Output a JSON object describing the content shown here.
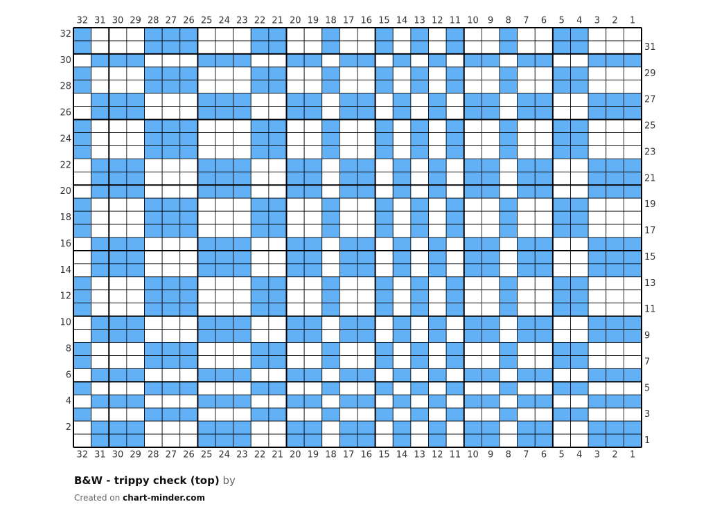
{
  "title": "B&W - trippy check (top)",
  "byline": "by",
  "created_prefix": "Created on",
  "site": "chart-minder.com",
  "fill_color": "#62b0f5",
  "empty_color": "#ffffff",
  "column_numbers": [
    32,
    31,
    30,
    29,
    28,
    27,
    26,
    25,
    24,
    23,
    22,
    21,
    20,
    19,
    18,
    17,
    16,
    15,
    14,
    13,
    12,
    11,
    10,
    9,
    8,
    7,
    6,
    5,
    4,
    3,
    2,
    1
  ],
  "row_numbers": [
    32,
    31,
    30,
    29,
    28,
    27,
    26,
    25,
    24,
    23,
    22,
    21,
    20,
    19,
    18,
    17,
    16,
    15,
    14,
    13,
    12,
    11,
    10,
    9,
    8,
    7,
    6,
    5,
    4,
    3,
    2,
    1
  ],
  "grid": [
    [
      1,
      0,
      0,
      0,
      1,
      1,
      1,
      0,
      0,
      0,
      1,
      1,
      0,
      0,
      1,
      0,
      0,
      1,
      0,
      1,
      0,
      1,
      0,
      0,
      1,
      0,
      0,
      1,
      1,
      0,
      0,
      0
    ],
    [
      1,
      0,
      0,
      0,
      1,
      1,
      1,
      0,
      0,
      0,
      1,
      1,
      0,
      0,
      1,
      0,
      0,
      1,
      0,
      1,
      0,
      1,
      0,
      0,
      1,
      0,
      0,
      1,
      1,
      0,
      0,
      0
    ],
    [
      0,
      1,
      1,
      1,
      0,
      0,
      0,
      1,
      1,
      1,
      0,
      0,
      1,
      1,
      0,
      1,
      1,
      0,
      1,
      0,
      1,
      0,
      1,
      1,
      0,
      1,
      1,
      0,
      0,
      1,
      1,
      1
    ],
    [
      1,
      0,
      0,
      0,
      1,
      1,
      1,
      0,
      0,
      0,
      1,
      1,
      0,
      0,
      1,
      0,
      0,
      1,
      0,
      1,
      0,
      1,
      0,
      0,
      1,
      0,
      0,
      1,
      1,
      0,
      0,
      0
    ],
    [
      1,
      0,
      0,
      0,
      1,
      1,
      1,
      0,
      0,
      0,
      1,
      1,
      0,
      0,
      1,
      0,
      0,
      1,
      0,
      1,
      0,
      1,
      0,
      0,
      1,
      0,
      0,
      1,
      1,
      0,
      0,
      0
    ],
    [
      0,
      1,
      1,
      1,
      0,
      0,
      0,
      1,
      1,
      1,
      0,
      0,
      1,
      1,
      0,
      1,
      1,
      0,
      1,
      0,
      1,
      0,
      1,
      1,
      0,
      1,
      1,
      0,
      0,
      1,
      1,
      1
    ],
    [
      0,
      1,
      1,
      1,
      0,
      0,
      0,
      1,
      1,
      1,
      0,
      0,
      1,
      1,
      0,
      1,
      1,
      0,
      1,
      0,
      1,
      0,
      1,
      1,
      0,
      1,
      1,
      0,
      0,
      1,
      1,
      1
    ],
    [
      1,
      0,
      0,
      0,
      1,
      1,
      1,
      0,
      0,
      0,
      1,
      1,
      0,
      0,
      1,
      0,
      0,
      1,
      0,
      1,
      0,
      1,
      0,
      0,
      1,
      0,
      0,
      1,
      1,
      0,
      0,
      0
    ],
    [
      1,
      0,
      0,
      0,
      1,
      1,
      1,
      0,
      0,
      0,
      1,
      1,
      0,
      0,
      1,
      0,
      0,
      1,
      0,
      1,
      0,
      1,
      0,
      0,
      1,
      0,
      0,
      1,
      1,
      0,
      0,
      0
    ],
    [
      1,
      0,
      0,
      0,
      1,
      1,
      1,
      0,
      0,
      0,
      1,
      1,
      0,
      0,
      1,
      0,
      0,
      1,
      0,
      1,
      0,
      1,
      0,
      0,
      1,
      0,
      0,
      1,
      1,
      0,
      0,
      0
    ],
    [
      0,
      1,
      1,
      1,
      0,
      0,
      0,
      1,
      1,
      1,
      0,
      0,
      1,
      1,
      0,
      1,
      1,
      0,
      1,
      0,
      1,
      0,
      1,
      1,
      0,
      1,
      1,
      0,
      0,
      1,
      1,
      1
    ],
    [
      0,
      1,
      1,
      1,
      0,
      0,
      0,
      1,
      1,
      1,
      0,
      0,
      1,
      1,
      0,
      1,
      1,
      0,
      1,
      0,
      1,
      0,
      1,
      1,
      0,
      1,
      1,
      0,
      0,
      1,
      1,
      1
    ],
    [
      0,
      1,
      1,
      1,
      0,
      0,
      0,
      1,
      1,
      1,
      0,
      0,
      1,
      1,
      0,
      1,
      1,
      0,
      1,
      0,
      1,
      0,
      1,
      1,
      0,
      1,
      1,
      0,
      0,
      1,
      1,
      1
    ],
    [
      1,
      0,
      0,
      0,
      1,
      1,
      1,
      0,
      0,
      0,
      1,
      1,
      0,
      0,
      1,
      0,
      0,
      1,
      0,
      1,
      0,
      1,
      0,
      0,
      1,
      0,
      0,
      1,
      1,
      0,
      0,
      0
    ],
    [
      1,
      0,
      0,
      0,
      1,
      1,
      1,
      0,
      0,
      0,
      1,
      1,
      0,
      0,
      1,
      0,
      0,
      1,
      0,
      1,
      0,
      1,
      0,
      0,
      1,
      0,
      0,
      1,
      1,
      0,
      0,
      0
    ],
    [
      1,
      0,
      0,
      0,
      1,
      1,
      1,
      0,
      0,
      0,
      1,
      1,
      0,
      0,
      1,
      0,
      0,
      1,
      0,
      1,
      0,
      1,
      0,
      0,
      1,
      0,
      0,
      1,
      1,
      0,
      0,
      0
    ],
    [
      0,
      1,
      1,
      1,
      0,
      0,
      0,
      1,
      1,
      1,
      0,
      0,
      1,
      1,
      0,
      1,
      1,
      0,
      1,
      0,
      1,
      0,
      1,
      1,
      0,
      1,
      1,
      0,
      0,
      1,
      1,
      1
    ],
    [
      0,
      1,
      1,
      1,
      0,
      0,
      0,
      1,
      1,
      1,
      0,
      0,
      1,
      1,
      0,
      1,
      1,
      0,
      1,
      0,
      1,
      0,
      1,
      1,
      0,
      1,
      1,
      0,
      0,
      1,
      1,
      1
    ],
    [
      0,
      1,
      1,
      1,
      0,
      0,
      0,
      1,
      1,
      1,
      0,
      0,
      1,
      1,
      0,
      1,
      1,
      0,
      1,
      0,
      1,
      0,
      1,
      1,
      0,
      1,
      1,
      0,
      0,
      1,
      1,
      1
    ],
    [
      1,
      0,
      0,
      0,
      1,
      1,
      1,
      0,
      0,
      0,
      1,
      1,
      0,
      0,
      1,
      0,
      0,
      1,
      0,
      1,
      0,
      1,
      0,
      0,
      1,
      0,
      0,
      1,
      1,
      0,
      0,
      0
    ],
    [
      1,
      0,
      0,
      0,
      1,
      1,
      1,
      0,
      0,
      0,
      1,
      1,
      0,
      0,
      1,
      0,
      0,
      1,
      0,
      1,
      0,
      1,
      0,
      0,
      1,
      0,
      0,
      1,
      1,
      0,
      0,
      0
    ],
    [
      1,
      0,
      0,
      0,
      1,
      1,
      1,
      0,
      0,
      0,
      1,
      1,
      0,
      0,
      1,
      0,
      0,
      1,
      0,
      1,
      0,
      1,
      0,
      0,
      1,
      0,
      0,
      1,
      1,
      0,
      0,
      0
    ],
    [
      0,
      1,
      1,
      1,
      0,
      0,
      0,
      1,
      1,
      1,
      0,
      0,
      1,
      1,
      0,
      1,
      1,
      0,
      1,
      0,
      1,
      0,
      1,
      1,
      0,
      1,
      1,
      0,
      0,
      1,
      1,
      1
    ],
    [
      0,
      1,
      1,
      1,
      0,
      0,
      0,
      1,
      1,
      1,
      0,
      0,
      1,
      1,
      0,
      1,
      1,
      0,
      1,
      0,
      1,
      0,
      1,
      1,
      0,
      1,
      1,
      0,
      0,
      1,
      1,
      1
    ],
    [
      1,
      0,
      0,
      0,
      1,
      1,
      1,
      0,
      0,
      0,
      1,
      1,
      0,
      0,
      1,
      0,
      0,
      1,
      0,
      1,
      0,
      1,
      0,
      0,
      1,
      0,
      0,
      1,
      1,
      0,
      0,
      0
    ],
    [
      1,
      0,
      0,
      0,
      1,
      1,
      1,
      0,
      0,
      0,
      1,
      1,
      0,
      0,
      1,
      0,
      0,
      1,
      0,
      1,
      0,
      1,
      0,
      0,
      1,
      0,
      0,
      1,
      1,
      0,
      0,
      0
    ],
    [
      0,
      1,
      1,
      1,
      0,
      0,
      0,
      1,
      1,
      1,
      0,
      0,
      1,
      1,
      0,
      1,
      1,
      0,
      1,
      0,
      1,
      0,
      1,
      1,
      0,
      1,
      1,
      0,
      0,
      1,
      1,
      1
    ],
    [
      1,
      0,
      0,
      0,
      1,
      1,
      1,
      0,
      0,
      0,
      1,
      1,
      0,
      0,
      1,
      0,
      0,
      1,
      0,
      1,
      0,
      1,
      0,
      0,
      1,
      0,
      0,
      1,
      1,
      0,
      0,
      0
    ],
    [
      0,
      1,
      1,
      1,
      0,
      0,
      0,
      1,
      1,
      1,
      0,
      0,
      1,
      1,
      0,
      1,
      1,
      0,
      1,
      0,
      1,
      0,
      1,
      1,
      0,
      1,
      1,
      0,
      0,
      1,
      1,
      1
    ],
    [
      1,
      0,
      0,
      0,
      1,
      1,
      1,
      0,
      0,
      0,
      1,
      1,
      0,
      0,
      1,
      0,
      0,
      1,
      0,
      1,
      0,
      1,
      0,
      0,
      1,
      0,
      0,
      1,
      1,
      0,
      0,
      0
    ],
    [
      0,
      1,
      1,
      1,
      0,
      0,
      0,
      1,
      1,
      1,
      0,
      0,
      1,
      1,
      0,
      1,
      1,
      0,
      1,
      0,
      1,
      0,
      1,
      1,
      0,
      1,
      1,
      0,
      0,
      1,
      1,
      1
    ],
    [
      0,
      1,
      1,
      1,
      0,
      0,
      0,
      1,
      1,
      1,
      0,
      0,
      1,
      1,
      0,
      1,
      1,
      0,
      1,
      0,
      1,
      0,
      1,
      1,
      0,
      1,
      1,
      0,
      0,
      1,
      1,
      1
    ]
  ]
}
